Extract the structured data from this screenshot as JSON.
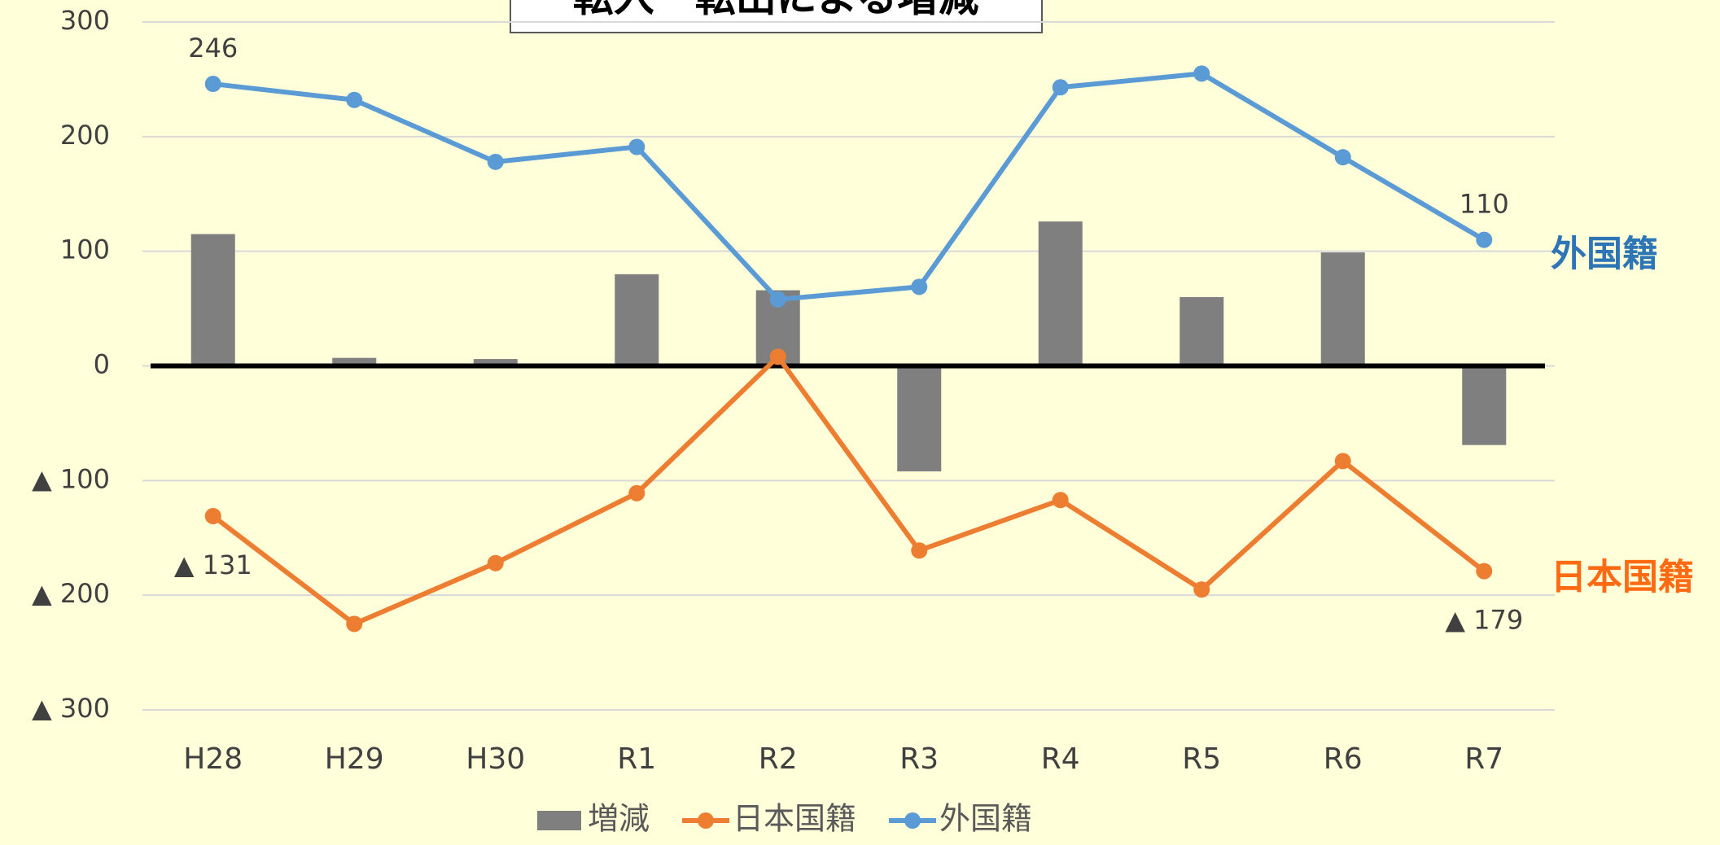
{
  "chart_data": {
    "type": "bar-line",
    "title": "転入－転出による増減",
    "categories": [
      "H28",
      "H29",
      "H30",
      "R1",
      "R2",
      "R3",
      "R4",
      "R5",
      "R6",
      "R7"
    ],
    "series": [
      {
        "name": "増減",
        "type": "bar",
        "color": "#7f7f7f",
        "values": [
          115,
          7,
          6,
          80,
          66,
          -92,
          126,
          60,
          99,
          -69
        ]
      },
      {
        "name": "日本国籍",
        "type": "line",
        "color": "#ed7d31",
        "label_color": "#ff6a13",
        "values": [
          -131,
          -225,
          -172,
          -111,
          8,
          -161,
          -117,
          -195,
          -83,
          -179
        ],
        "value_labels": [
          "▲ 131",
          null,
          null,
          null,
          null,
          null,
          null,
          null,
          null,
          "▲ 179"
        ]
      },
      {
        "name": "外国籍",
        "type": "line",
        "color": "#5b9bd5",
        "label_color": "#2e75b6",
        "values": [
          246,
          232,
          178,
          191,
          58,
          69,
          243,
          255,
          182,
          110
        ],
        "value_labels": [
          "246",
          null,
          null,
          null,
          null,
          null,
          null,
          null,
          null,
          "110"
        ]
      }
    ],
    "ylim": [
      -300,
      300
    ],
    "yticks": [
      {
        "value": -300,
        "label": "▲ 300"
      },
      {
        "value": -200,
        "label": "▲ 200"
      },
      {
        "value": -100,
        "label": "▲ 100"
      },
      0,
      100,
      200,
      300
    ],
    "grid": true
  }
}
